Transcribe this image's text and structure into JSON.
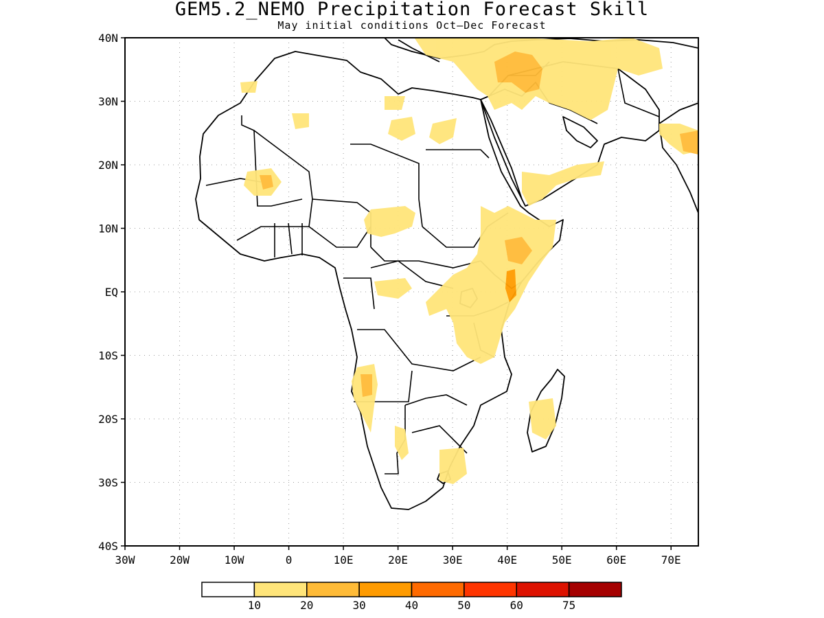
{
  "title": "GEM5.2_NEMO Precipitation Forecast Skill",
  "subtitle": "May initial conditions  Oct–Dec Forecast",
  "map": {
    "region": "Africa and Middle East",
    "lon_range": [
      -30,
      75
    ],
    "lat_range": [
      -40,
      40
    ],
    "grid": "dotted",
    "lat_labels": [
      "40N",
      "30N",
      "20N",
      "10N",
      "EQ",
      "10S",
      "20S",
      "30S",
      "40S"
    ],
    "lon_labels": [
      "30W",
      "20W",
      "10W",
      "0",
      "10E",
      "20E",
      "30E",
      "40E",
      "50E",
      "60E",
      "70E"
    ]
  },
  "colorbar": {
    "labels": [
      "10",
      "20",
      "30",
      "40",
      "50",
      "60",
      "75"
    ],
    "colors": [
      "#ffffff",
      "#ffe57a",
      "#ffbb37",
      "#ff9b00",
      "#ff6a00",
      "#ff3500",
      "#dd1200",
      "#a50000"
    ]
  }
}
